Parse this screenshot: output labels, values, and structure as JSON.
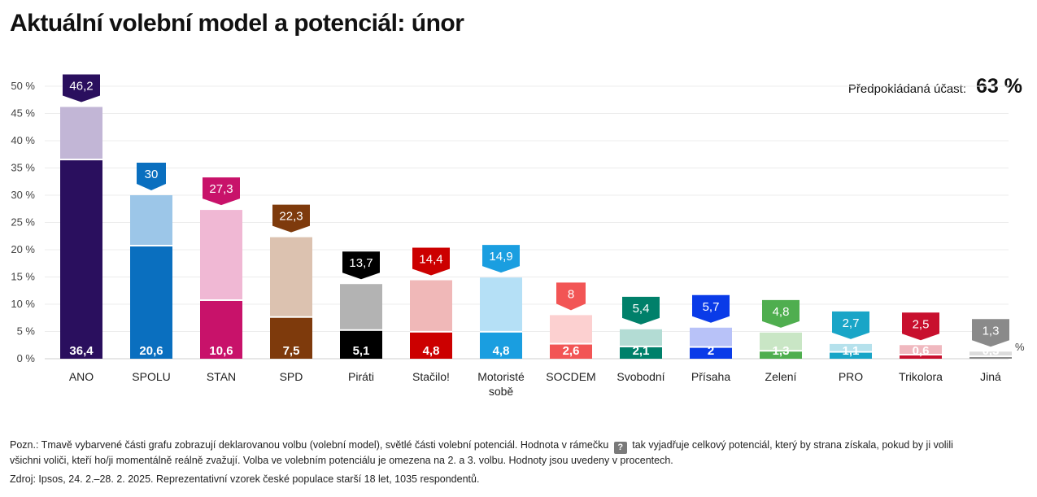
{
  "title": "Aktuální volební model a potenciál: únor",
  "turnout": {
    "label": "Předpokládaná účast:",
    "value": "63 %"
  },
  "chart_data": {
    "type": "bar",
    "title": "Aktuální volební model a potenciál: únor",
    "xlabel": "",
    "ylabel": "",
    "ylim": [
      0,
      50
    ],
    "y_ticks": [
      "0 %",
      "5 %",
      "10 %",
      "15 %",
      "20 %",
      "25 %",
      "30 %",
      "35 %",
      "40 %",
      "45 %",
      "50 %"
    ],
    "unit_label": "%",
    "grid": true,
    "categories": [
      "ANO",
      "SPOLU",
      "STAN",
      "SPD",
      "Piráti",
      "Stačilo!",
      "Motoristé sobě",
      "SOCDEM",
      "Svobodní",
      "Přísaha",
      "Zelení",
      "PRO",
      "Trikolora",
      "Jiná"
    ],
    "category_lines": [
      [
        "ANO"
      ],
      [
        "SPOLU"
      ],
      [
        "STAN"
      ],
      [
        "SPD"
      ],
      [
        "Piráti"
      ],
      [
        "Stačilo!"
      ],
      [
        "Motoristé",
        "sobě"
      ],
      [
        "SOCDEM"
      ],
      [
        "Svobodní"
      ],
      [
        "Přísaha"
      ],
      [
        "Zelení"
      ],
      [
        "PRO"
      ],
      [
        "Trikolora"
      ],
      [
        "Jiná"
      ]
    ],
    "series": [
      {
        "values": [
          36.4,
          20.6,
          10.6,
          7.5,
          5.1,
          4.8,
          4.8,
          2.6,
          2.1,
          2,
          1.3,
          1.1,
          0.6,
          0.3
        ],
        "labels": [
          "36,4",
          "20,6",
          "10,6",
          "7,5",
          "5,1",
          "4,8",
          "4,8",
          "2,6",
          "2,1",
          "2",
          "1,3",
          "1,1",
          "0,6",
          "0,3"
        ]
      },
      {
        "values": [
          46.2,
          30,
          27.3,
          22.3,
          13.7,
          14.4,
          14.9,
          8,
          5.4,
          5.7,
          4.8,
          2.7,
          2.5,
          1.3
        ],
        "labels": [
          "46,2",
          "30",
          "27,3",
          "22,3",
          "13,7",
          "14,4",
          "14,9",
          "8",
          "5,4",
          "5,7",
          "4,8",
          "2,7",
          "2,5",
          "1,3"
        ]
      }
    ],
    "colors_dark": [
      "#2a0f5e",
      "#0a6fbf",
      "#c8126a",
      "#7e3a0c",
      "#000000",
      "#cc0000",
      "#1a9ee0",
      "#f25555",
      "#00806a",
      "#0a3be8",
      "#4fae4f",
      "#19a5c7",
      "#c8102e",
      "#8a8a8a"
    ],
    "colors_light": [
      "#c2b6d6",
      "#9cc6e8",
      "#f0b8d4",
      "#dcc2b0",
      "#b3b3b3",
      "#f0b8b8",
      "#b5e0f6",
      "#fcd0d0",
      "#b3dcd4",
      "#b8c2f8",
      "#c9e6c5",
      "#b5e1ec",
      "#f0b8bf",
      "#dcdcdc"
    ],
    "colors_tag": [
      "#2a0f5e",
      "#0a6fbf",
      "#c8126a",
      "#7e3a0c",
      "#000000",
      "#cc0000",
      "#1a9ee0",
      "#f25555",
      "#00806a",
      "#0a3be8",
      "#4fae4f",
      "#19a5c7",
      "#c8102e",
      "#8a8a8a"
    ]
  },
  "note": {
    "before_box": "Pozn.: Tmavě vybarvené části grafu zobrazují deklarovanou volbu (volební model), světlé části volební potenciál. Hodnota v rámečku",
    "box_symbol": "?",
    "after_box": "tak vyjadřuje celkový potenciál, který by strana získala, pokud by ji volili všichni voliči, kteří ho/ji momentálně reálně zvažují. Volba ve volebním potenciálu je omezena na 2. a 3. volbu. Hodnoty jsou uvedeny v procentech."
  },
  "source": "Zdroj: Ipsos, 24. 2.–28. 2. 2025. Reprezentativní vzorek české populace starší 18 let, 1035 respondentů."
}
